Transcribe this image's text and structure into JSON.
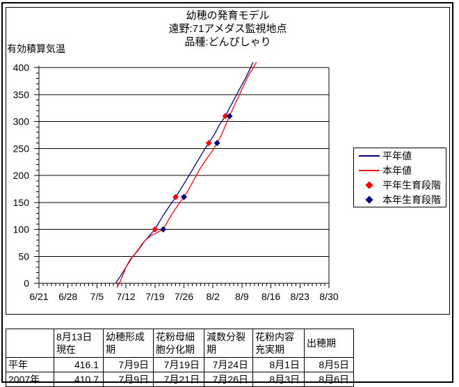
{
  "title": {
    "line1": "幼穂の発育モデル",
    "line2": "遠野:71アメダス監視地点",
    "line3": "品種:どんぴしゃり"
  },
  "y_axis_label": "有効積算気温",
  "legend": {
    "items": [
      {
        "label": "平年値",
        "swatch": "line",
        "color": "#000080"
      },
      {
        "label": "本年値",
        "swatch": "line",
        "color": "#ff0000"
      },
      {
        "label": "平年生育段階",
        "swatch": "diamond",
        "color": "#ff0000"
      },
      {
        "label": "本年生育段階",
        "swatch": "diamond",
        "color": "#000080"
      }
    ]
  },
  "chart_data": {
    "type": "line",
    "title": "幼穂の発育モデル 遠野:71アメダス監視地点 品種:どんぴしゃり",
    "xlabel": "",
    "ylabel": "有効積算気温",
    "x_unit": "days from 6/21",
    "x_tick_labels": [
      "6/21",
      "6/28",
      "7/5",
      "7/12",
      "7/19",
      "7/26",
      "8/2",
      "8/9",
      "8/16",
      "8/23",
      "8/30"
    ],
    "x_major_step_days": 7,
    "x_range_days": [
      0,
      70
    ],
    "ylim": [
      0,
      400
    ],
    "y_ticks": [
      0,
      50,
      100,
      150,
      200,
      250,
      300,
      350,
      400
    ],
    "y_minor_step": 10,
    "grid": "horizontal major gridlines",
    "legend_position": "right",
    "series": [
      {
        "name": "平年値",
        "type": "line",
        "color": "#000080",
        "points": [
          [
            18.5,
            0
          ],
          [
            20,
            17
          ],
          [
            21,
            30
          ],
          [
            22.5,
            48
          ],
          [
            24,
            62
          ],
          [
            25.5,
            78
          ],
          [
            28,
            100
          ],
          [
            30,
            126
          ],
          [
            31.5,
            143
          ],
          [
            33,
            160
          ],
          [
            34.5,
            178
          ],
          [
            36,
            197
          ],
          [
            38,
            223
          ],
          [
            39.5,
            242
          ],
          [
            41,
            260
          ],
          [
            42.5,
            278
          ],
          [
            43.5,
            293
          ],
          [
            45,
            310
          ],
          [
            46.5,
            332
          ],
          [
            48,
            354
          ],
          [
            50,
            382
          ],
          [
            51.7,
            410
          ]
        ]
      },
      {
        "name": "本年値",
        "type": "line",
        "color": "#ff0000",
        "points": [
          [
            18.8,
            -8
          ],
          [
            19.4,
            0
          ],
          [
            20.2,
            14
          ],
          [
            21,
            30
          ],
          [
            22,
            44
          ],
          [
            23,
            53
          ],
          [
            24,
            63
          ],
          [
            25,
            74
          ],
          [
            26,
            82
          ],
          [
            27,
            88
          ],
          [
            28.5,
            94
          ],
          [
            30,
            100
          ],
          [
            31,
            114
          ],
          [
            32.5,
            133
          ],
          [
            34,
            150
          ],
          [
            35,
            160
          ],
          [
            36,
            172
          ],
          [
            37.5,
            193
          ],
          [
            39,
            214
          ],
          [
            40.5,
            231
          ],
          [
            42,
            247
          ],
          [
            43,
            260
          ],
          [
            44,
            274
          ],
          [
            45,
            292
          ],
          [
            46,
            310
          ],
          [
            47.5,
            335
          ],
          [
            49,
            360
          ],
          [
            50.5,
            384
          ],
          [
            52.5,
            410
          ]
        ]
      },
      {
        "name": "平年生育段階",
        "type": "scatter",
        "marker": "diamond",
        "color": "#ff0000",
        "points": [
          [
            28,
            100
          ],
          [
            33,
            160
          ],
          [
            41,
            260
          ],
          [
            45,
            310
          ]
        ],
        "dates": [
          "7/19",
          "7/24",
          "8/1",
          "8/5"
        ]
      },
      {
        "name": "本年生育段階",
        "type": "scatter",
        "marker": "diamond",
        "color": "#000080",
        "points": [
          [
            30,
            100
          ],
          [
            35,
            160
          ],
          [
            43,
            260
          ],
          [
            46,
            310
          ]
        ],
        "dates": [
          "7/21",
          "7/26",
          "8/3",
          "8/6"
        ]
      }
    ]
  },
  "table": {
    "headers": [
      "",
      "8月13日\n現在",
      "幼穂形成\n期",
      "花粉母細\n胞分化期",
      "減数分裂\n期",
      "花粉内容\n充実期",
      "出穂期"
    ],
    "rows": [
      {
        "label": "平年",
        "values": [
          "416.1",
          "7月9日",
          "7月19日",
          "7月24日",
          "8月1日",
          "8月5日"
        ]
      },
      {
        "label": "2007年",
        "values": [
          "410.7",
          "7月9日",
          "7月21日",
          "7月26日",
          "8月3日",
          "8月6日"
        ]
      }
    ]
  }
}
